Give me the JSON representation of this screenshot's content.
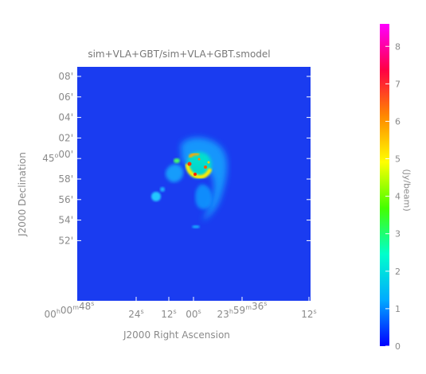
{
  "chart_data": {
    "type": "heatmap",
    "title": "sim+VLA+GBT/sim+VLA+GBT.smodel",
    "xlabel": "J2000 Right Ascension",
    "ylabel": "J2000 Declination",
    "colorbar_label": "(Jy/beam)",
    "colorbar_range": [
      0,
      8.6
    ],
    "colorbar_ticks": [
      0,
      1,
      2,
      3,
      4,
      5,
      6,
      7,
      8
    ],
    "x_ticks": [
      {
        "h": "00",
        "hu": "h",
        "m": "00",
        "mu": "m",
        "s": "48",
        "su": "s"
      },
      {
        "h": "",
        "hu": "",
        "m": "",
        "mu": "",
        "s": "24",
        "su": "s"
      },
      {
        "h": "",
        "hu": "",
        "m": "",
        "mu": "",
        "s": "12",
        "su": "s"
      },
      {
        "h": "",
        "hu": "",
        "m": "",
        "mu": "",
        "s": "00",
        "su": "s"
      },
      {
        "h": "23",
        "hu": "h",
        "m": "59",
        "mu": "m",
        "s": "36",
        "su": "s"
      },
      {
        "h": "",
        "hu": "",
        "m": "",
        "mu": "",
        "s": "12",
        "su": "s"
      }
    ],
    "y_ticks": [
      {
        "deg": "",
        "du": "",
        "min": "08",
        "mu": "'"
      },
      {
        "deg": "",
        "du": "",
        "min": "06",
        "mu": "'"
      },
      {
        "deg": "",
        "du": "",
        "min": "04",
        "mu": "'"
      },
      {
        "deg": "",
        "du": "",
        "min": "02",
        "mu": "'"
      },
      {
        "deg": "45",
        "du": "o",
        "min": "00",
        "mu": "'"
      },
      {
        "deg": "",
        "du": "",
        "min": "58",
        "mu": "'"
      },
      {
        "deg": "",
        "du": "",
        "min": "56",
        "mu": "'"
      },
      {
        "deg": "",
        "du": "",
        "min": "54",
        "mu": "'"
      },
      {
        "deg": "",
        "du": "",
        "min": "52",
        "mu": "'"
      }
    ],
    "colormap": [
      "#0000ff",
      "#00aaff",
      "#00ffcc",
      "#44ff00",
      "#ffff00",
      "#ff8800",
      "#ff0044",
      "#ff00ff"
    ],
    "background_color": "#1a3cf0"
  }
}
